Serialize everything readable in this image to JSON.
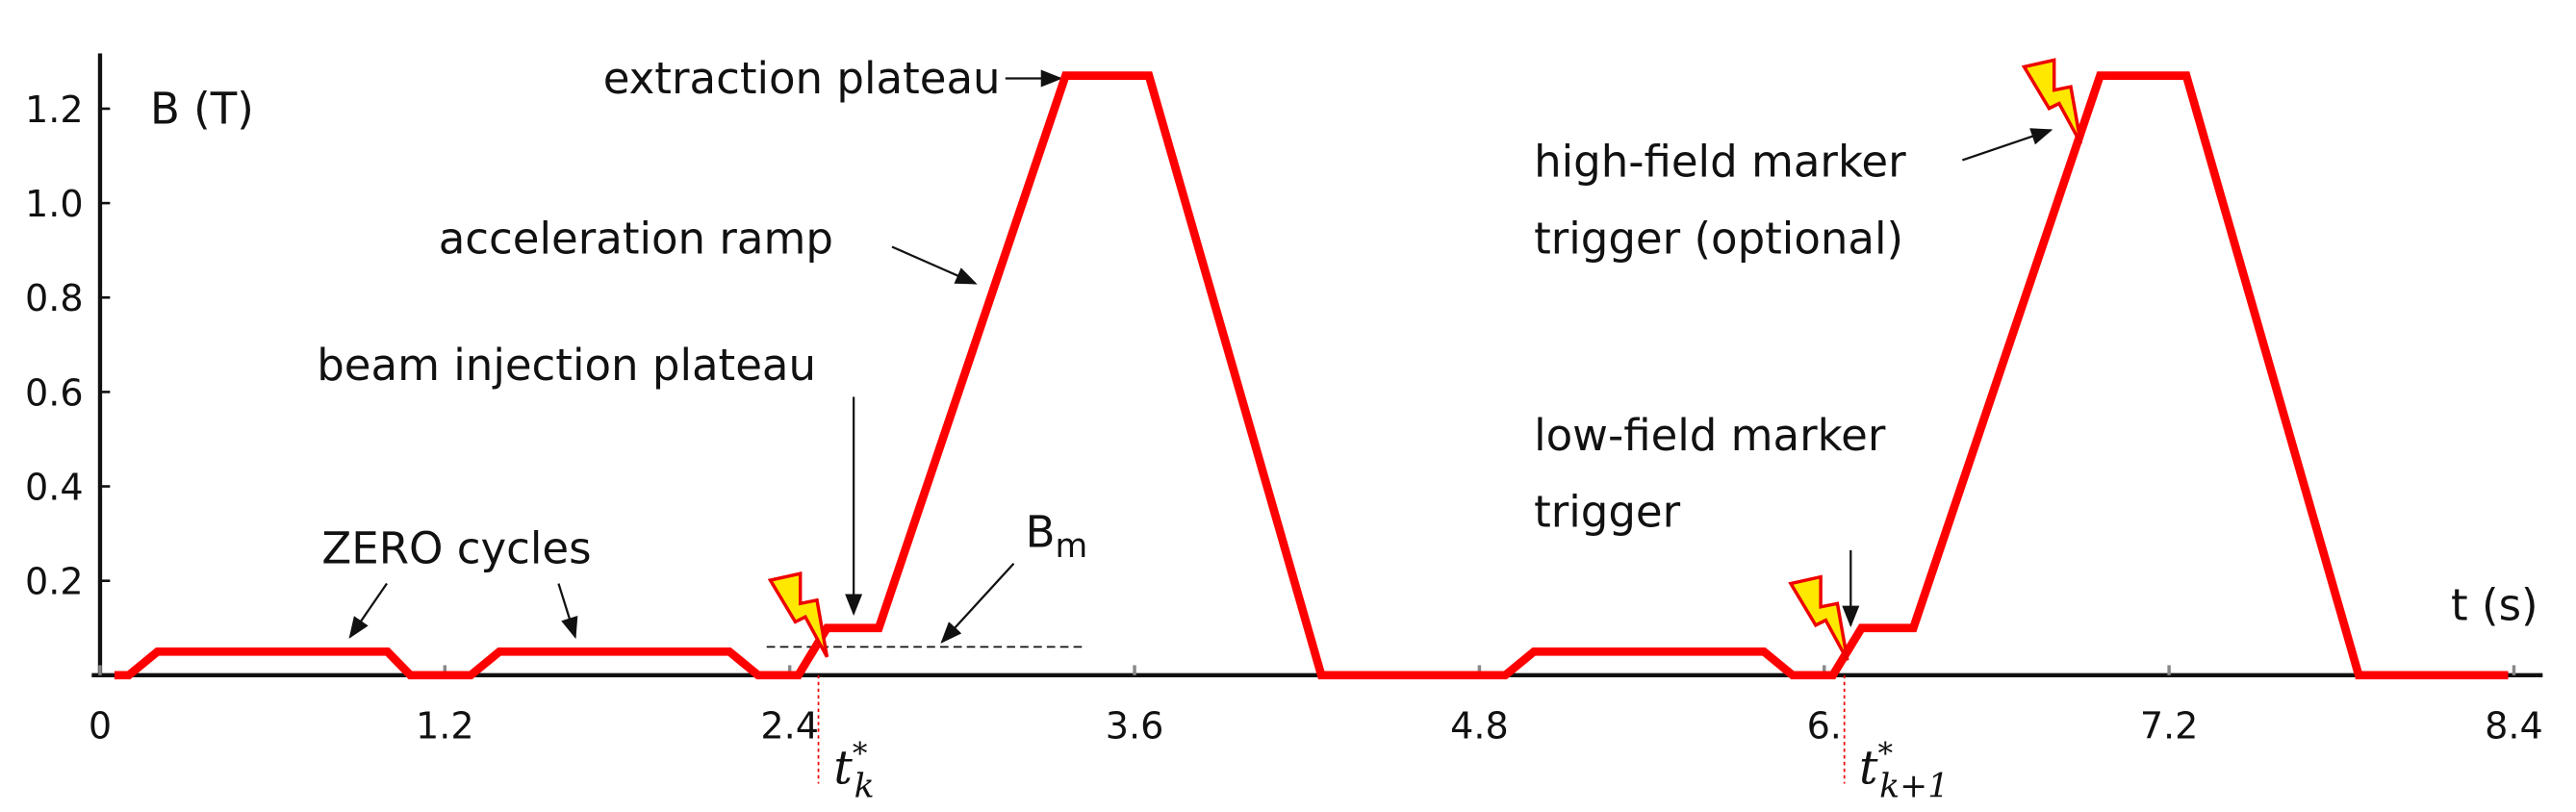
{
  "chart_data": {
    "type": "line",
    "x_label": "t (s)",
    "y_label": "B (T)",
    "x": [
      0.05,
      0.1,
      0.2,
      1.0,
      1.08,
      1.29,
      1.39,
      2.19,
      2.29,
      2.43,
      2.53,
      2.71,
      3.36,
      3.65,
      4.25,
      4.89,
      4.99,
      5.79,
      5.89,
      6.03,
      6.13,
      6.31,
      6.96,
      7.26,
      7.86,
      8.38
    ],
    "values": [
      0,
      0,
      0.05,
      0.05,
      0,
      0,
      0.05,
      0.05,
      0,
      0,
      0.1,
      0.1,
      1.27,
      1.27,
      0,
      0,
      0.05,
      0.05,
      0,
      0,
      0.1,
      0.1,
      1.27,
      1.27,
      0,
      0
    ],
    "color": "#ff0000",
    "xlim": [
      0,
      8.5
    ],
    "ylim": [
      0,
      1.31
    ],
    "xticks": [
      0,
      1.2,
      2.4,
      3.6,
      4.8,
      {
        "value": 6,
        "label": "6."
      },
      7.2,
      8.4
    ],
    "yticks": [
      0.2,
      0.4,
      0.6,
      0.8,
      {
        "value": 1,
        "label": "1.0"
      },
      1.2
    ],
    "reference_line": {
      "y": 0.06,
      "x": [
        2.32,
        3.42
      ]
    },
    "marker_times": [
      2.5,
      6.07
    ],
    "annotations": [
      "extraction plateau",
      "acceleration ramp",
      "beam injection plateau",
      "ZERO cycles",
      "high-field marker",
      "trigger (optional)",
      "low-field marker",
      "trigger"
    ],
    "bm_label": {
      "base": "B",
      "sub": "m"
    },
    "marker_labels": [
      {
        "base": "t",
        "sup": "*",
        "sub": "k"
      },
      {
        "base": "t",
        "sup": "*",
        "sub": "k+1"
      }
    ]
  }
}
